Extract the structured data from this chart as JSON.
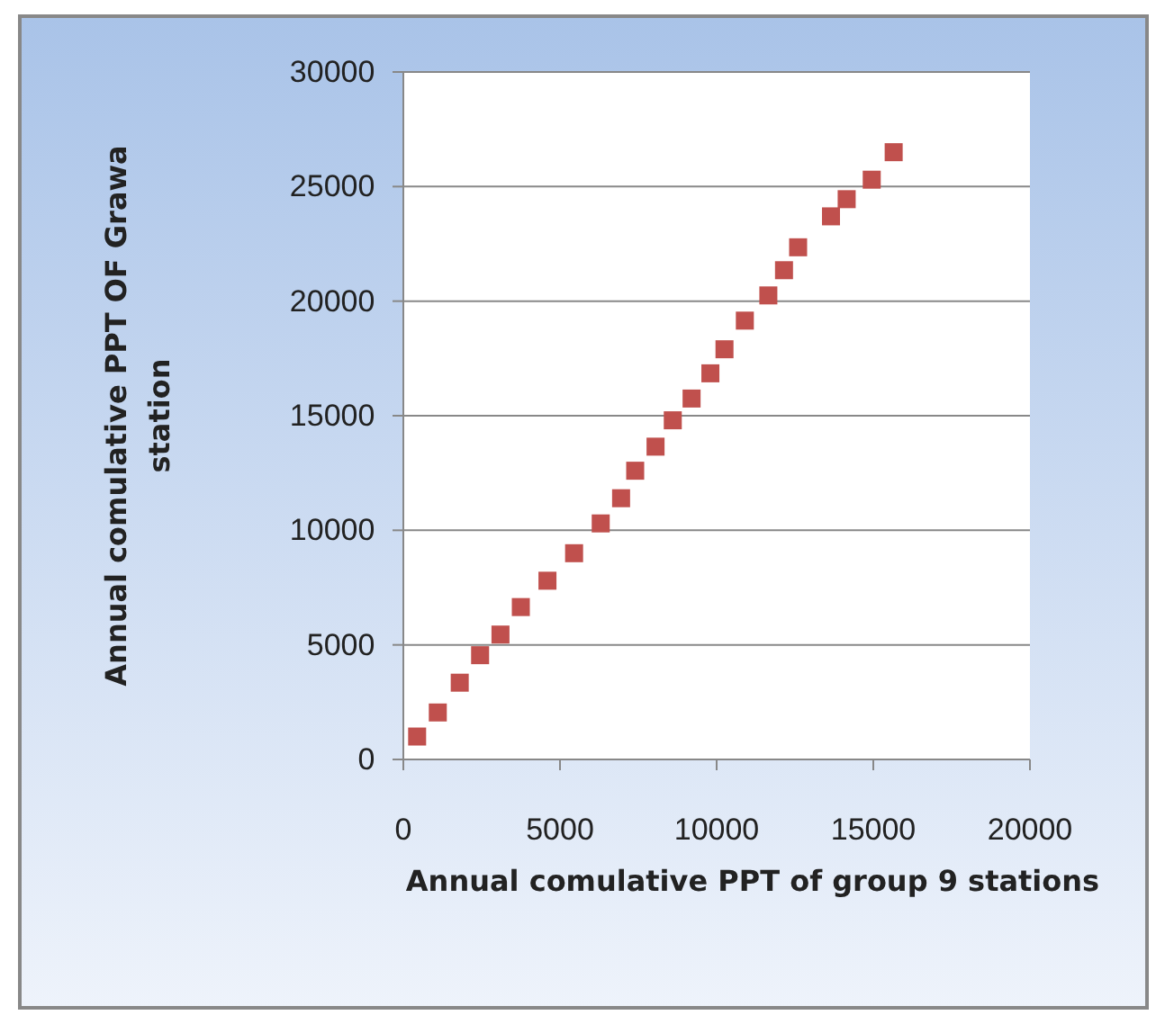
{
  "chart_data": {
    "type": "scatter",
    "xlabel": "Annual comulative PPT of group 9 stations",
    "ylabel": "Annual comulative PPT OF Grawa station",
    "x": [
      440,
      1100,
      1800,
      2450,
      3100,
      3750,
      4600,
      5450,
      6300,
      6950,
      7400,
      8050,
      8600,
      9200,
      9800,
      10250,
      10900,
      11650,
      12150,
      12600,
      13650,
      14150,
      14950,
      15650
    ],
    "values": [
      1000,
      2050,
      3350,
      4550,
      5450,
      6650,
      7800,
      9000,
      10300,
      11400,
      12600,
      13650,
      14800,
      15750,
      16850,
      17900,
      19150,
      20250,
      21350,
      22350,
      23700,
      24450,
      25300,
      26500
    ],
    "color": "#c0504d",
    "marker": "square",
    "grid": "y",
    "xlim": [
      0,
      20000
    ],
    "xticks": [
      0,
      5000,
      10000,
      15000,
      20000
    ],
    "ylim": [
      0,
      30000
    ],
    "yticks": [
      0,
      5000,
      10000,
      15000,
      20000,
      25000,
      30000
    ]
  }
}
